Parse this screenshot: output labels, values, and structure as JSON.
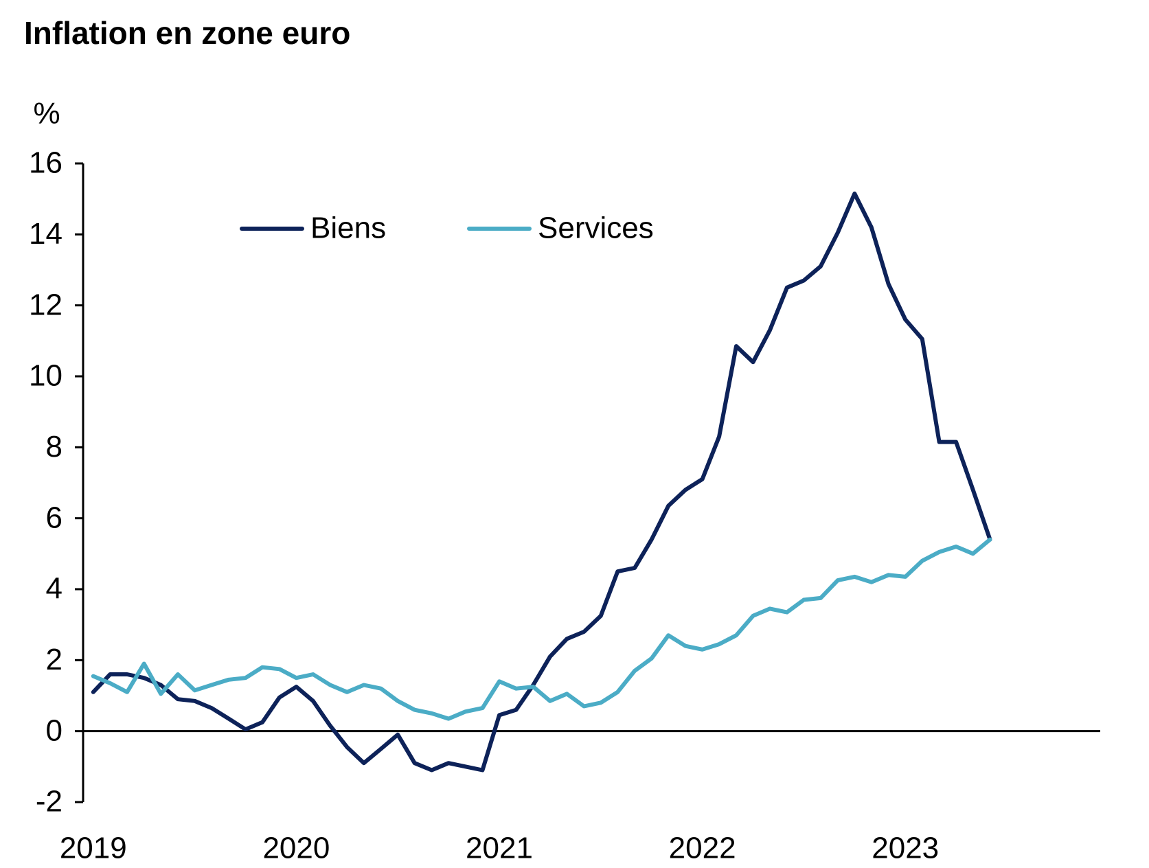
{
  "chart_data": {
    "type": "line",
    "title": "Inflation en zone euro",
    "y_label": "%",
    "x": [
      2019,
      2019.083,
      2019.167,
      2019.25,
      2019.333,
      2019.417,
      2019.5,
      2019.583,
      2019.667,
      2019.75,
      2019.833,
      2019.917,
      2020,
      2020.083,
      2020.167,
      2020.25,
      2020.333,
      2020.417,
      2020.5,
      2020.583,
      2020.667,
      2020.75,
      2020.833,
      2020.917,
      2021,
      2021.083,
      2021.167,
      2021.25,
      2021.333,
      2021.417,
      2021.5,
      2021.583,
      2021.667,
      2021.75,
      2021.833,
      2021.917,
      2022,
      2022.083,
      2022.167,
      2022.25,
      2022.333,
      2022.417,
      2022.5,
      2022.583,
      2022.667,
      2022.75,
      2022.833,
      2022.917,
      2023,
      2023.083,
      2023.167,
      2023.25,
      2023.333,
      2023.417
    ],
    "series": [
      {
        "name": "Biens",
        "color": "#0d2259",
        "values": [
          1.1,
          1.6,
          1.6,
          1.5,
          1.3,
          0.9,
          0.85,
          0.65,
          0.35,
          0.05,
          0.25,
          0.95,
          1.25,
          0.85,
          0.15,
          -0.45,
          -0.9,
          -0.5,
          -0.1,
          -0.9,
          -1.1,
          -0.9,
          -1.0,
          -1.1,
          0.45,
          0.6,
          1.3,
          2.1,
          2.6,
          2.8,
          3.25,
          4.5,
          4.6,
          5.4,
          6.35,
          6.8,
          7.1,
          8.3,
          10.85,
          10.4,
          11.3,
          12.5,
          12.7,
          13.1,
          14.05,
          15.15,
          14.2,
          12.6,
          11.6,
          11.05,
          8.15,
          8.15,
          6.8,
          5.4
        ]
      },
      {
        "name": "Services",
        "color": "#4bacc6",
        "values": [
          1.55,
          1.35,
          1.1,
          1.9,
          1.05,
          1.6,
          1.15,
          1.3,
          1.45,
          1.5,
          1.8,
          1.75,
          1.5,
          1.6,
          1.3,
          1.1,
          1.3,
          1.2,
          0.85,
          0.6,
          0.5,
          0.35,
          0.55,
          0.65,
          1.4,
          1.2,
          1.25,
          0.85,
          1.05,
          0.7,
          0.8,
          1.1,
          1.7,
          2.05,
          2.7,
          2.4,
          2.3,
          2.45,
          2.7,
          3.25,
          3.45,
          3.35,
          3.7,
          3.75,
          4.25,
          4.35,
          4.2,
          4.4,
          4.35,
          4.8,
          5.05,
          5.2,
          5.0,
          5.4
        ]
      }
    ],
    "xlim": [
      2018.95,
      2023.96
    ],
    "xticks": [
      2019,
      2020,
      2021,
      2022,
      2023
    ],
    "ylim": [
      -2,
      16
    ],
    "yticks": [
      -2,
      0,
      2,
      4,
      6,
      8,
      10,
      12,
      14,
      16
    ],
    "legend": "upper-left",
    "zero_line": true
  }
}
